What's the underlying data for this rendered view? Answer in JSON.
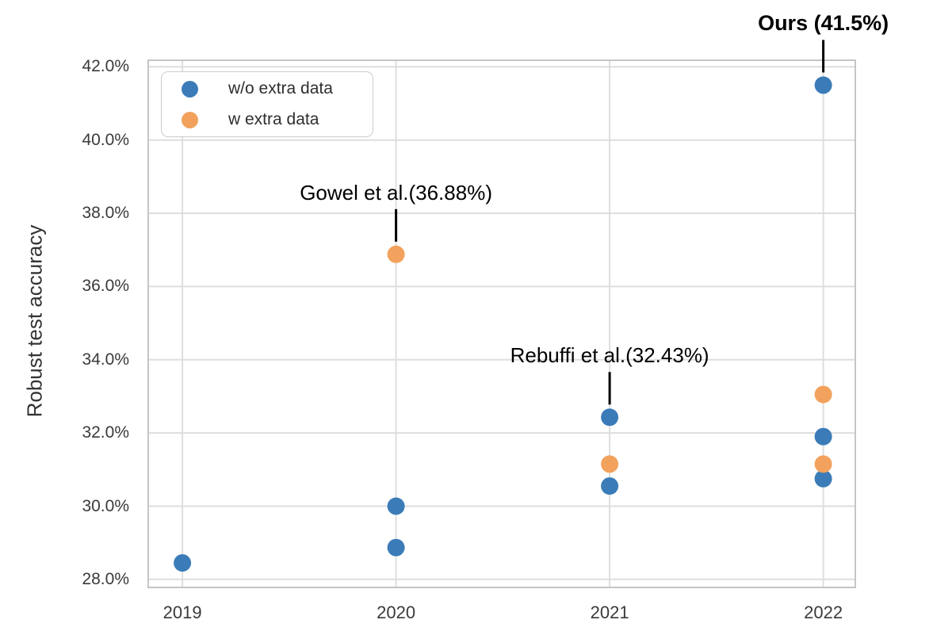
{
  "chart_data": {
    "type": "scatter",
    "title": "",
    "xlabel": "",
    "ylabel": "Robust test accuracy",
    "grid": true,
    "legend_position": "upper left",
    "xlim": [
      2018.84,
      2022.15
    ],
    "ylim": [
      27.78,
      42.18
    ],
    "xtick_values": [
      2019,
      2020,
      2021,
      2022
    ],
    "xtick_labels": [
      "2019",
      "2020",
      "2021",
      "2022"
    ],
    "ytick_values": [
      28,
      30,
      32,
      34,
      36,
      38,
      40,
      42
    ],
    "ytick_labels": [
      "28.0%",
      "30.0%",
      "32.0%",
      "34.0%",
      "36.0%",
      "38.0%",
      "40.0%",
      "42.0%"
    ],
    "colors": {
      "without_extra_data": "#3B7CB8",
      "with_extra_data": "#F2A25C",
      "grid": "#dedede",
      "spine": "#c5c5c5",
      "annotation": "#000000"
    },
    "series": [
      {
        "name": "w/o extra data",
        "color": "#3B7CB8",
        "points": [
          {
            "x": 2019,
            "y": 28.45
          },
          {
            "x": 2020,
            "y": 30.0
          },
          {
            "x": 2020,
            "y": 28.87
          },
          {
            "x": 2021,
            "y": 32.43
          },
          {
            "x": 2021,
            "y": 30.55
          },
          {
            "x": 2022,
            "y": 41.5
          },
          {
            "x": 2022,
            "y": 31.9
          },
          {
            "x": 2022,
            "y": 30.75
          }
        ]
      },
      {
        "name": "w extra data",
        "color": "#F2A25C",
        "points": [
          {
            "x": 2020,
            "y": 36.88
          },
          {
            "x": 2021,
            "y": 31.15
          },
          {
            "x": 2022,
            "y": 33.05
          },
          {
            "x": 2022,
            "y": 31.15
          }
        ]
      }
    ],
    "annotations": [
      {
        "text": "Gowel et al.(36.88%)",
        "x": 2020,
        "y": 36.88,
        "bold": false
      },
      {
        "text": "Rebuffi et al.(32.43%)",
        "x": 2021,
        "y": 32.43,
        "bold": false
      },
      {
        "text": "Ours (41.5%)",
        "x": 2022,
        "y": 41.5,
        "bold": true
      }
    ]
  }
}
